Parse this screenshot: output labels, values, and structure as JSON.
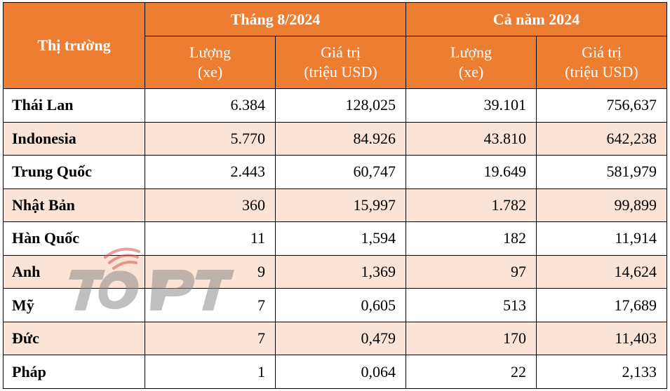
{
  "header": {
    "market_label": "Thị trường",
    "period1": "Tháng 8/2024",
    "period2": "Cả năm 2024",
    "qty_label_line1": "Lượng",
    "qty_label_line2": "(xe)",
    "val_label_line1": "Giá trị",
    "val_label_line2": "(triệu USD)"
  },
  "rows": [
    {
      "country": "Thái Lan",
      "m_qty": "6.384",
      "m_val": "128,025",
      "y_qty": "39.101",
      "y_val": "756,637"
    },
    {
      "country": "Indonesia",
      "m_qty": "5.770",
      "m_val": "84.926",
      "y_qty": "43.810",
      "y_val": "642,238"
    },
    {
      "country": "Trung Quốc",
      "m_qty": "2.443",
      "m_val": "60,747",
      "y_qty": "19.649",
      "y_val": "581,979"
    },
    {
      "country": "Nhật Bản",
      "m_qty": "360",
      "m_val": "15,997",
      "y_qty": "1.782",
      "y_val": "99,899"
    },
    {
      "country": "Hàn Quốc",
      "m_qty": "11",
      "m_val": "1,594",
      "y_qty": "182",
      "y_val": "11,914"
    },
    {
      "country": "Anh",
      "m_qty": "9",
      "m_val": "1,369",
      "y_qty": "97",
      "y_val": "14,624"
    },
    {
      "country": "Mỹ",
      "m_qty": "7",
      "m_val": "0,605",
      "y_qty": "513",
      "y_val": "17,689"
    },
    {
      "country": "Đức",
      "m_qty": "7",
      "m_val": "0,479",
      "y_qty": "170",
      "y_val": "11,403"
    },
    {
      "country": "Pháp",
      "m_qty": "1",
      "m_val": "0,064",
      "y_qty": "22",
      "y_val": "2,133"
    }
  ],
  "watermark": {
    "text": "TOPT",
    "icon": "topt-logo-icon"
  },
  "colors": {
    "header_bg": "#ed7d31",
    "header_text": "#ffffff",
    "stripe_bg": "#fbe4d5",
    "watermark_gray": "#8c8c8c",
    "watermark_red": "#d9534f"
  }
}
